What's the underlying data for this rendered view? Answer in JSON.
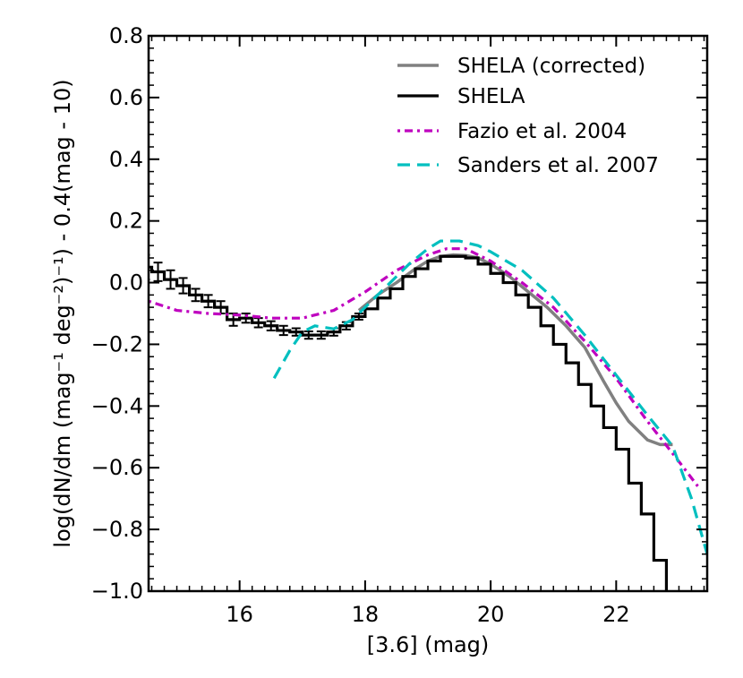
{
  "chart_data": {
    "type": "line",
    "title": "",
    "xlabel": "[3.6] (mag)",
    "ylabel": "log(dN/dm  (mag⁻¹ deg⁻²)⁻¹) - 0.4(mag - 10)",
    "xlim": [
      14.55,
      23.45
    ],
    "ylim": [
      -1.0,
      0.8
    ],
    "x_ticks": [
      16,
      18,
      20,
      22
    ],
    "x_tick_labels": [
      "16",
      "18",
      "20",
      "22"
    ],
    "y_ticks": [
      -1.0,
      -0.8,
      -0.6,
      -0.4,
      -0.2,
      0.0,
      0.2,
      0.4,
      0.6,
      0.8
    ],
    "y_tick_labels": [
      "−1.0",
      "−0.8",
      "−0.6",
      "−0.4",
      "−0.2",
      "0.0",
      "0.2",
      "0.4",
      "0.6",
      "0.8"
    ],
    "grid": false,
    "legend_position": "top-right",
    "series": [
      {
        "name": "SHELA (corrected)",
        "style": "solid",
        "color": "#808080",
        "x": [
          17.9,
          18.2,
          18.5,
          18.8,
          19.0,
          19.2,
          19.4,
          19.6,
          19.8,
          20.0,
          20.3,
          20.6,
          20.9,
          21.2,
          21.5,
          21.8,
          22.0,
          22.2,
          22.5,
          22.7,
          22.9
        ],
        "y": [
          -0.09,
          -0.04,
          0.0,
          0.045,
          0.07,
          0.085,
          0.09,
          0.088,
          0.08,
          0.06,
          0.02,
          -0.03,
          -0.08,
          -0.14,
          -0.21,
          -0.32,
          -0.39,
          -0.45,
          -0.51,
          -0.525,
          -0.525
        ]
      },
      {
        "name": "SHELA",
        "style": "step",
        "color": "#000000",
        "bin_width": 0.2,
        "x": [
          14.5,
          14.7,
          14.9,
          15.1,
          15.3,
          15.5,
          15.7,
          15.9,
          16.1,
          16.3,
          16.5,
          16.7,
          16.9,
          17.1,
          17.3,
          17.5,
          17.7,
          17.9,
          18.1,
          18.3,
          18.5,
          18.7,
          18.9,
          19.1,
          19.3,
          19.5,
          19.7,
          19.9,
          20.1,
          20.3,
          20.5,
          20.7,
          20.9,
          21.1,
          21.3,
          21.5,
          21.7,
          21.9,
          22.1,
          22.3,
          22.5,
          22.7
        ],
        "y": [
          0.05,
          0.035,
          0.01,
          -0.01,
          -0.04,
          -0.06,
          -0.08,
          -0.12,
          -0.115,
          -0.13,
          -0.14,
          -0.155,
          -0.16,
          -0.17,
          -0.17,
          -0.16,
          -0.14,
          -0.11,
          -0.085,
          -0.05,
          -0.02,
          0.02,
          0.045,
          0.07,
          0.085,
          0.085,
          0.08,
          0.06,
          0.03,
          0.0,
          -0.04,
          -0.08,
          -0.14,
          -0.2,
          -0.26,
          -0.33,
          -0.4,
          -0.47,
          -0.54,
          -0.65,
          -0.75,
          -0.9
        ],
        "y_err": [
          0.04,
          0.03,
          0.03,
          0.025,
          0.02,
          0.02,
          0.02,
          0.02,
          0.015,
          0.015,
          0.015,
          0.015,
          0.012,
          0.012,
          0.012,
          0.012,
          0.012,
          0.01,
          0.01,
          0.01,
          0.01,
          0.01,
          0.01,
          0.01,
          0.01,
          0.01,
          0.01,
          0.01,
          0.01,
          0.01,
          0.01,
          0.01,
          0.01,
          0.01,
          0.01,
          0.01,
          0.01,
          0.01,
          0.01,
          0.01,
          0.01,
          0.01
        ]
      },
      {
        "name": "Fazio et al. 2004",
        "style": "dashdot",
        "color": "#bf00bf",
        "x": [
          14.55,
          15.0,
          15.5,
          16.0,
          16.5,
          17.0,
          17.5,
          18.0,
          18.5,
          19.0,
          19.3,
          19.6,
          20.0,
          20.5,
          21.0,
          21.5,
          22.0,
          22.5,
          23.0,
          23.3
        ],
        "y": [
          -0.06,
          -0.09,
          -0.1,
          -0.105,
          -0.115,
          -0.115,
          -0.09,
          -0.03,
          0.04,
          0.09,
          0.11,
          0.11,
          0.07,
          0.0,
          -0.08,
          -0.19,
          -0.31,
          -0.45,
          -0.58,
          -0.66
        ]
      },
      {
        "name": "Sanders et al. 2007",
        "style": "dashed",
        "color": "#00bfbf",
        "x": [
          16.55,
          16.8,
          17.0,
          17.2,
          17.5,
          17.8,
          18.1,
          18.4,
          18.7,
          19.0,
          19.2,
          19.5,
          19.8,
          20.0,
          20.5,
          21.0,
          21.5,
          22.0,
          22.5,
          22.9,
          23.2,
          23.45
        ],
        "y": [
          -0.31,
          -0.22,
          -0.16,
          -0.14,
          -0.15,
          -0.12,
          -0.06,
          0.0,
          0.06,
          0.11,
          0.135,
          0.135,
          0.12,
          0.1,
          0.04,
          -0.05,
          -0.17,
          -0.3,
          -0.43,
          -0.53,
          -0.7,
          -0.88
        ]
      }
    ]
  }
}
